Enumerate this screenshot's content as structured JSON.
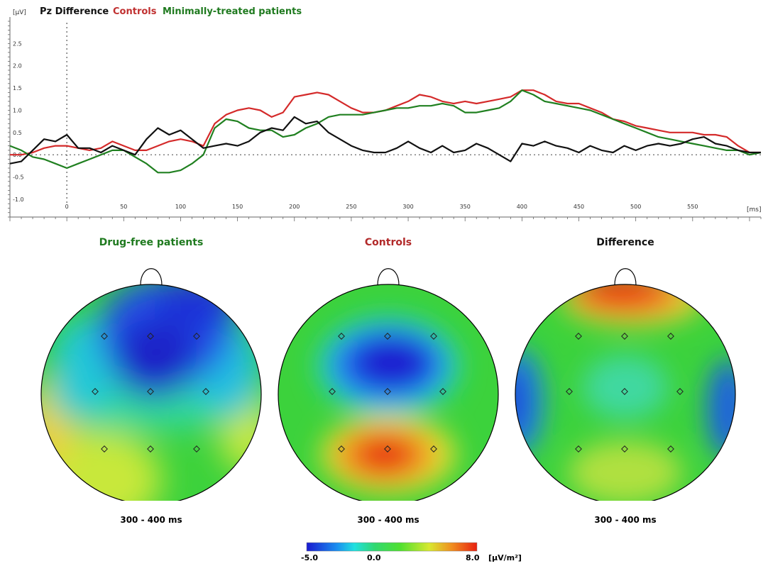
{
  "colors": {
    "difference": "#111111",
    "controls": "#d42a2a",
    "patients": "#208020"
  },
  "chart_data": {
    "type": "line",
    "legend": [
      "Pz Difference",
      "Controls",
      "Minimally-treated patients"
    ],
    "yunit": "[µV]",
    "xunit": "[ms]",
    "xlim": [
      -50,
      610
    ],
    "ylim": [
      -1.4,
      3.0
    ],
    "yticks": [
      "2.5",
      "2.0",
      "1.5",
      "1.0",
      "0.5",
      "0.0",
      "-0.5",
      "-1.0"
    ],
    "ytick_values": [
      2.5,
      2.0,
      1.5,
      1.0,
      0.5,
      0.0,
      -0.5,
      -1.0
    ],
    "xticks": [
      0,
      50,
      100,
      150,
      200,
      250,
      300,
      350,
      400,
      450,
      500,
      550
    ],
    "series": [
      {
        "name": "Controls",
        "key": "controls",
        "x": [
          -50,
          -40,
          -30,
          -20,
          -10,
          0,
          10,
          20,
          30,
          40,
          50,
          60,
          70,
          80,
          90,
          100,
          110,
          120,
          130,
          140,
          150,
          160,
          170,
          180,
          190,
          200,
          210,
          220,
          230,
          240,
          250,
          260,
          270,
          280,
          290,
          300,
          310,
          320,
          330,
          340,
          350,
          360,
          370,
          380,
          390,
          400,
          410,
          420,
          430,
          440,
          450,
          460,
          470,
          480,
          490,
          500,
          510,
          520,
          530,
          540,
          550,
          560,
          570,
          580,
          590,
          600,
          610
        ],
        "y": [
          0.0,
          0.0,
          0.05,
          0.15,
          0.2,
          0.2,
          0.15,
          0.1,
          0.15,
          0.3,
          0.2,
          0.1,
          0.1,
          0.2,
          0.3,
          0.35,
          0.3,
          0.2,
          0.7,
          0.9,
          1.0,
          1.05,
          1.0,
          0.85,
          0.95,
          1.3,
          1.35,
          1.4,
          1.35,
          1.2,
          1.05,
          0.95,
          0.95,
          1.0,
          1.1,
          1.2,
          1.35,
          1.3,
          1.2,
          1.15,
          1.2,
          1.15,
          1.2,
          1.25,
          1.3,
          1.45,
          1.45,
          1.35,
          1.2,
          1.15,
          1.15,
          1.05,
          0.95,
          0.8,
          0.75,
          0.65,
          0.6,
          0.55,
          0.5,
          0.5,
          0.5,
          0.45,
          0.45,
          0.4,
          0.2,
          0.05,
          0.05
        ]
      },
      {
        "name": "Minimally-treated patients",
        "key": "patients",
        "x": [
          -50,
          -40,
          -30,
          -20,
          -10,
          0,
          10,
          20,
          30,
          40,
          50,
          60,
          70,
          80,
          90,
          100,
          110,
          120,
          130,
          140,
          150,
          160,
          170,
          180,
          190,
          200,
          210,
          220,
          230,
          240,
          250,
          260,
          270,
          280,
          290,
          300,
          310,
          320,
          330,
          340,
          350,
          360,
          370,
          380,
          390,
          400,
          410,
          420,
          430,
          440,
          450,
          460,
          470,
          480,
          490,
          500,
          510,
          520,
          530,
          540,
          550,
          560,
          570,
          580,
          590,
          600,
          610
        ],
        "y": [
          0.2,
          0.1,
          -0.05,
          -0.1,
          -0.2,
          -0.3,
          -0.2,
          -0.1,
          0.0,
          0.1,
          0.1,
          -0.05,
          -0.2,
          -0.4,
          -0.4,
          -0.35,
          -0.2,
          0.0,
          0.6,
          0.8,
          0.75,
          0.6,
          0.55,
          0.55,
          0.4,
          0.45,
          0.6,
          0.7,
          0.85,
          0.9,
          0.9,
          0.9,
          0.95,
          1.0,
          1.05,
          1.05,
          1.1,
          1.1,
          1.15,
          1.1,
          0.95,
          0.95,
          1.0,
          1.05,
          1.2,
          1.45,
          1.35,
          1.2,
          1.15,
          1.1,
          1.05,
          1.0,
          0.9,
          0.8,
          0.7,
          0.6,
          0.5,
          0.4,
          0.35,
          0.3,
          0.25,
          0.2,
          0.15,
          0.1,
          0.1,
          0.0,
          0.05
        ]
      },
      {
        "name": "Pz Difference",
        "key": "difference",
        "x": [
          -50,
          -40,
          -30,
          -20,
          -10,
          0,
          10,
          20,
          30,
          40,
          50,
          60,
          70,
          80,
          90,
          100,
          110,
          120,
          130,
          140,
          150,
          160,
          170,
          180,
          190,
          200,
          210,
          220,
          230,
          240,
          250,
          260,
          270,
          280,
          290,
          300,
          310,
          320,
          330,
          340,
          350,
          360,
          370,
          380,
          390,
          400,
          410,
          420,
          430,
          440,
          450,
          460,
          470,
          480,
          490,
          500,
          510,
          520,
          530,
          540,
          550,
          560,
          570,
          580,
          590,
          600,
          610
        ],
        "y": [
          -0.2,
          -0.15,
          0.1,
          0.35,
          0.3,
          0.45,
          0.15,
          0.15,
          0.05,
          0.2,
          0.1,
          0.0,
          0.35,
          0.6,
          0.45,
          0.55,
          0.35,
          0.15,
          0.2,
          0.25,
          0.2,
          0.3,
          0.5,
          0.6,
          0.55,
          0.85,
          0.7,
          0.75,
          0.5,
          0.35,
          0.2,
          0.1,
          0.05,
          0.05,
          0.15,
          0.3,
          0.15,
          0.05,
          0.2,
          0.05,
          0.1,
          0.25,
          0.15,
          0.0,
          -0.15,
          0.25,
          0.2,
          0.3,
          0.2,
          0.15,
          0.05,
          0.2,
          0.1,
          0.05,
          0.2,
          0.1,
          0.2,
          0.25,
          0.2,
          0.25,
          0.35,
          0.4,
          0.25,
          0.2,
          0.1,
          0.05,
          0.05
        ]
      }
    ]
  },
  "maps": [
    {
      "title": "Drug-free patients",
      "title_color": "#1f7a1f",
      "range": "300 - 400 ms"
    },
    {
      "title": "Controls",
      "title_color": "#b22a2a",
      "range": "300 - 400 ms"
    },
    {
      "title": "Difference",
      "title_color": "#111111",
      "range": "300 - 400 ms"
    }
  ],
  "colorbar": {
    "min_label": "-5.0",
    "mid_label": "0.0",
    "max_label": "8.0",
    "unit": "[µV/m²]"
  }
}
